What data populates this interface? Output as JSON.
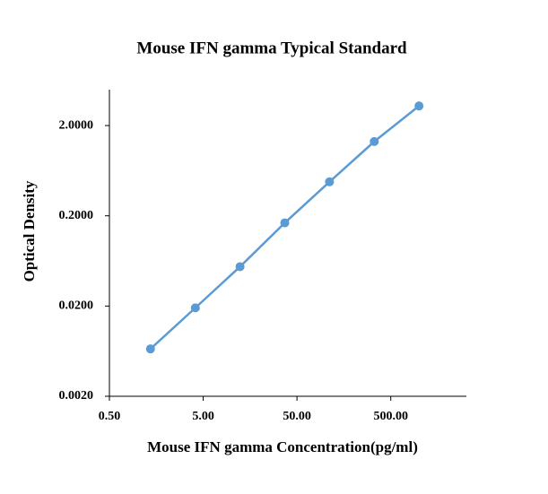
{
  "chart_data": {
    "type": "line",
    "title": "Mouse IFN gamma Typical Standard",
    "x_label": "Mouse IFN gamma Concentration(pg/ml)",
    "y_label": "Optical Density",
    "x": [
      1.37,
      4.12,
      12.35,
      37.04,
      111.11,
      333.33,
      1000
    ],
    "series": [
      {
        "color": "#5b9bd5",
        "values": [
          0.0067,
          0.0191,
          0.0546,
          0.167,
          0.476,
          1.33,
          3.3
        ]
      }
    ],
    "x_log": true,
    "y_log": true,
    "xlim": [
      0.5,
      3200
    ],
    "xticks": [
      {
        "value": 0.5,
        "label": "0.50"
      },
      {
        "value": 5,
        "label": "5.00"
      },
      {
        "value": 50,
        "label": "50.00"
      },
      {
        "value": 500,
        "label": "500.00"
      }
    ],
    "ylim": [
      0.002,
      5
    ],
    "yticks": [
      {
        "value": 0.002,
        "label": "0.0020"
      },
      {
        "value": 0.02,
        "label": "0.0200"
      },
      {
        "value": 0.2,
        "label": "0.2000"
      },
      {
        "value": 2,
        "label": "2.0000"
      }
    ]
  }
}
